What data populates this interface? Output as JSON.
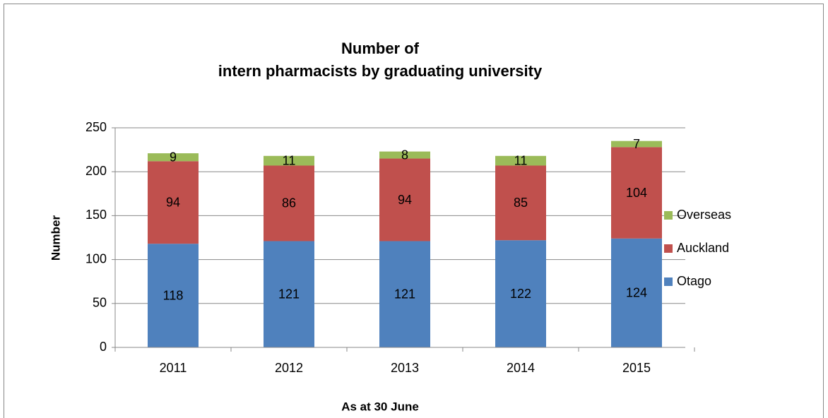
{
  "chart_data": {
    "type": "stacked-bar",
    "title": [
      "Number of",
      "intern pharmacists by graduating university"
    ],
    "x_label": "As at 30 June",
    "y_label": "Number",
    "categories": [
      "2011",
      "2012",
      "2013",
      "2014",
      "2015"
    ],
    "series": [
      {
        "name": "Otago",
        "color": "#4f81bd",
        "values": [
          118,
          121,
          121,
          122,
          124
        ]
      },
      {
        "name": "Auckland",
        "color": "#c0504d",
        "values": [
          94,
          86,
          94,
          85,
          104
        ]
      },
      {
        "name": "Overseas",
        "color": "#9bbb59",
        "values": [
          9,
          11,
          8,
          11,
          7
        ]
      }
    ],
    "ylim": [
      0,
      250
    ],
    "yticks": [
      0,
      50,
      100,
      150,
      200,
      250
    ],
    "grid": true,
    "legend": "right"
  }
}
